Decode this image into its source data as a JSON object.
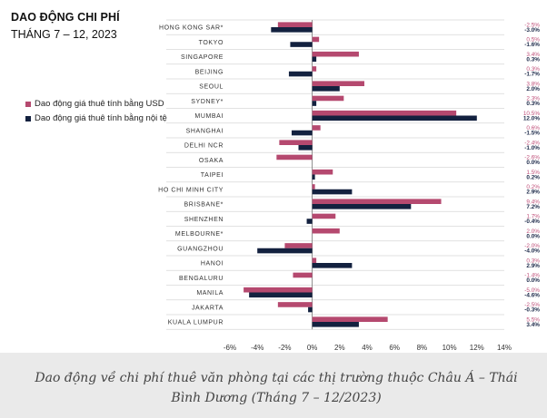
{
  "header": {
    "title": "DAO ĐỘNG CHI PHÍ",
    "subtitle": "THÁNG 7 – 12, 2023"
  },
  "caption": "Dao động về chi phí thuê văn phòng tại các thị trường thuộc Châu Á – Thái Bình Dương (Tháng 7 – 12/2023)",
  "colors": {
    "usd": "#b5496f",
    "local": "#13213f",
    "usd_label": "#c0507a",
    "local_label": "#1d2a4a"
  },
  "chart_data": {
    "type": "bar",
    "orientation": "horizontal",
    "title": "DAO ĐỘNG CHI PHÍ",
    "subtitle": "THÁNG 7 – 12, 2023",
    "categories": [
      "HONG KONG SAR*",
      "TOKYO",
      "SINGAPORE",
      "BEIJING",
      "SEOUL",
      "SYDNEY*",
      "MUMBAI",
      "SHANGHAI",
      "DELHI NCR",
      "OSAKA",
      "TAIPEI",
      "HO CHI MINH CITY",
      "BRISBANE*",
      "SHENZHEN",
      "MELBOURNE*",
      "GUANGZHOU",
      "HANOI",
      "BENGALURU",
      "MANILA",
      "JAKARTA",
      "KUALA LUMPUR"
    ],
    "series": [
      {
        "name": "Dao động giá thuê tính bằng USD",
        "labels": [
          "-2.5%",
          "0.5%",
          "3.4%",
          "0.3%",
          "3.8%",
          "2.3%",
          "10.5%",
          "0.6%",
          "-2.4%",
          "-2.6%",
          "1.5%",
          "0.2%",
          "9.4%",
          "1.7%",
          "2.0%",
          "-2.0%",
          "0.3%",
          "-1.4%",
          "-5.0%",
          "-2.5%",
          "5.5%"
        ],
        "values": [
          -2.5,
          0.5,
          3.4,
          0.3,
          3.8,
          2.3,
          10.5,
          0.6,
          -2.4,
          -2.6,
          1.5,
          0.2,
          9.4,
          1.7,
          2.0,
          -2.0,
          0.3,
          -1.4,
          -5.0,
          -2.5,
          5.5
        ]
      },
      {
        "name": "Dao động giá thuê tính bằng nội tệ",
        "labels": [
          "-3.0%",
          "-1.6%",
          "0.3%",
          "-1.7%",
          "2.0%",
          "0.3%",
          "12.0%",
          "-1.5%",
          "-1.0%",
          "0.0%",
          "0.2%",
          "2.9%",
          "7.2%",
          "-0.4%",
          "0.0%",
          "-4.0%",
          "2.9%",
          "0.0%",
          "-4.6%",
          "-0.3%",
          "3.4%"
        ],
        "values": [
          -3.0,
          -1.6,
          0.3,
          -1.7,
          2.0,
          0.3,
          12.0,
          -1.5,
          -1.0,
          0.0,
          0.2,
          2.9,
          7.2,
          -0.4,
          0.0,
          -4.0,
          2.9,
          0.0,
          -4.6,
          -0.3,
          3.4
        ]
      }
    ],
    "xlim": [
      -6,
      14
    ],
    "xticks": [
      -6,
      -4,
      -2,
      0,
      2,
      4,
      6,
      8,
      10,
      12,
      14
    ],
    "xtick_labels": [
      "-6%",
      "-4%",
      "-2%",
      "0%",
      "2%",
      "4%",
      "6%",
      "8%",
      "10%",
      "12%",
      "14%"
    ],
    "xlabel": "",
    "ylabel": "",
    "legend_position": "left"
  }
}
